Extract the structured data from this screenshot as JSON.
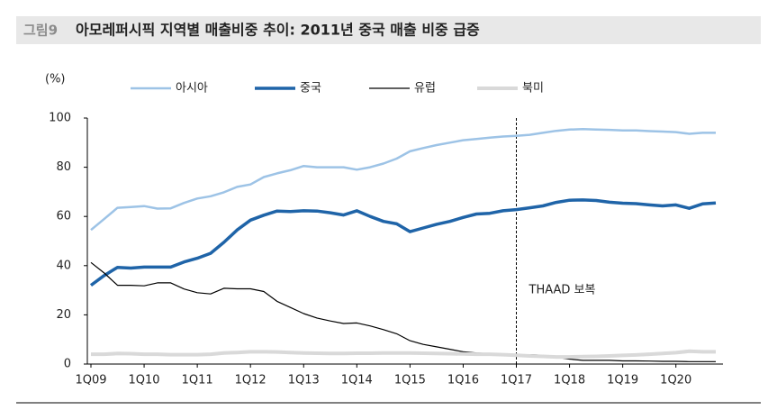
{
  "chart_data": {
    "type": "line",
    "figure_label": "그림9",
    "title": "아모레퍼시픽 지역별 매출비중 추이: 2011년 중국 매출 비중 급증",
    "y_label": "(%)",
    "annotation": "THAAD 보복",
    "vline": "1Q17",
    "categories": [
      "1Q09",
      null,
      null,
      null,
      "1Q10",
      null,
      null,
      null,
      "1Q11",
      null,
      null,
      null,
      "1Q12",
      null,
      null,
      null,
      "1Q13",
      null,
      null,
      null,
      "1Q14",
      null,
      null,
      null,
      "1Q15",
      null,
      null,
      null,
      "1Q16",
      null,
      null,
      null,
      "1Q17",
      null,
      null,
      null,
      "1Q18",
      null,
      null,
      null,
      "1Q19",
      null,
      null,
      null,
      "1Q20",
      null,
      null,
      null
    ],
    "series": [
      {
        "name": "아시아",
        "color": "#9dc3e6",
        "width": 2.5,
        "values": [
          54.5,
          59,
          63.5,
          63.8,
          64.2,
          63.2,
          63.3,
          65.5,
          67.3,
          68.2,
          69.8,
          72,
          73,
          76,
          77.5,
          78.8,
          80.5,
          80,
          80,
          80,
          79,
          80,
          81.5,
          83.5,
          86.5,
          87.8,
          89,
          90,
          91,
          91.5,
          92,
          92.5,
          92.8,
          93.2,
          94,
          94.8,
          95.3,
          95.5,
          95.3,
          95.2,
          95,
          95,
          94.7,
          94.5,
          94.3,
          93.6,
          94,
          94
        ]
      },
      {
        "name": "중국",
        "color": "#1f64a8",
        "width": 3.5,
        "values": [
          32,
          36,
          39.3,
          39,
          39.4,
          39.4,
          39.4,
          41.5,
          43,
          45,
          49.5,
          54.5,
          58.5,
          60.5,
          62.2,
          62,
          62.3,
          62.2,
          61.5,
          60.6,
          62.3,
          60,
          58,
          57,
          53.8,
          55.3,
          56.8,
          58,
          59.6,
          61,
          61.3,
          62.3,
          62.8,
          63.5,
          64.3,
          65.7,
          66.6,
          66.7,
          66.5,
          65.8,
          65.4,
          65.2,
          64.7,
          64.3,
          64.7,
          63.3,
          65.1,
          65.5
        ]
      },
      {
        "name": "유럽",
        "color": "#000000",
        "width": 1.2,
        "values": [
          41.3,
          37,
          32,
          32,
          31.8,
          33,
          33,
          30.5,
          29,
          28.5,
          30.8,
          30.6,
          30.6,
          29.5,
          25.5,
          23,
          20.5,
          18.7,
          17.5,
          16.5,
          16.7,
          15.5,
          14,
          12.3,
          9.5,
          8,
          7,
          6,
          5,
          4.5,
          4.2,
          4,
          3.8,
          3.8,
          3.5,
          2.8,
          2,
          1.5,
          1.5,
          1.5,
          1.3,
          1.3,
          1.2,
          1.1,
          1.1,
          1,
          1,
          1
        ]
      },
      {
        "name": "북미",
        "color": "#d9d9d9",
        "width": 4,
        "values": [
          4,
          4,
          4.3,
          4.2,
          4,
          4,
          3.8,
          3.8,
          3.8,
          4,
          4.5,
          4.7,
          5,
          5,
          4.9,
          4.7,
          4.5,
          4.4,
          4.3,
          4.3,
          4.4,
          4.4,
          4.5,
          4.5,
          4.5,
          4.4,
          4.3,
          4.2,
          4.1,
          4,
          4,
          3.8,
          3.6,
          3.3,
          3.1,
          2.9,
          2.9,
          3,
          3.1,
          3.3,
          3.5,
          3.7,
          4,
          4.3,
          4.6,
          5.2,
          5,
          5
        ]
      }
    ],
    "ylim": [
      0,
      100
    ],
    "yticks": [
      0,
      20,
      40,
      60,
      80,
      100
    ],
    "grid": false
  }
}
